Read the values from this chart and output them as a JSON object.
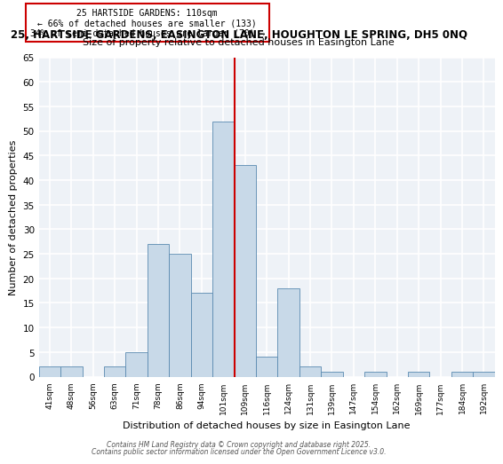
{
  "title_line1": "25, HARTSIDE GARDENS, EASINGTON LANE, HOUGHTON LE SPRING, DH5 0NQ",
  "title_line2": "Size of property relative to detached houses in Easington Lane",
  "xlabel": "Distribution of detached houses by size in Easington Lane",
  "ylabel": "Number of detached properties",
  "bin_labels": [
    "41sqm",
    "48sqm",
    "56sqm",
    "63sqm",
    "71sqm",
    "78sqm",
    "86sqm",
    "94sqm",
    "101sqm",
    "109sqm",
    "116sqm",
    "124sqm",
    "131sqm",
    "139sqm",
    "147sqm",
    "154sqm",
    "162sqm",
    "169sqm",
    "177sqm",
    "184sqm",
    "192sqm"
  ],
  "bar_values": [
    2,
    2,
    0,
    2,
    5,
    27,
    25,
    17,
    52,
    43,
    4,
    18,
    2,
    1,
    0,
    1,
    0,
    1,
    0,
    1,
    1
  ],
  "bar_color": "#c8d9e8",
  "bar_edge_color": "#5a8ab0",
  "vline_x": 8.5,
  "vline_color": "#cc0000",
  "annotation_text": "25 HARTSIDE GARDENS: 110sqm\n← 66% of detached houses are smaller (133)\n34% of semi-detached houses are larger (70) →",
  "annotation_box_color": "#cc0000",
  "ylim": [
    0,
    65
  ],
  "yticks": [
    0,
    5,
    10,
    15,
    20,
    25,
    30,
    35,
    40,
    45,
    50,
    55,
    60,
    65
  ],
  "footer_line1": "Contains HM Land Registry data © Crown copyright and database right 2025.",
  "footer_line2": "Contains public sector information licensed under the Open Government Licence v3.0.",
  "bg_color": "#eef2f7",
  "grid_color": "#ffffff"
}
